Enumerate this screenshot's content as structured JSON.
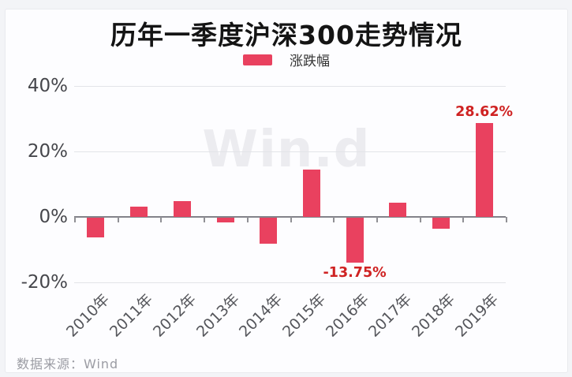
{
  "watermark": "Win.d",
  "source": "数据来源：Wind",
  "colors": {
    "bar": "#e9415f",
    "data_label": "#cf2222",
    "grid": "#e3e4e8",
    "axis": "#83838a",
    "card_bg": "#fdfdff",
    "page_bg": "#f3f4f7"
  },
  "chart_data": {
    "type": "bar",
    "title": "历年一季度沪深300走势情况",
    "series_name": "涨跌幅",
    "legend_position": "top",
    "categories": [
      "2010年",
      "2011年",
      "2012年",
      "2013年",
      "2014年",
      "2015年",
      "2016年",
      "2017年",
      "2018年",
      "2019年"
    ],
    "values": [
      -6.0,
      3.1,
      4.8,
      -1.4,
      -8.0,
      14.5,
      -13.75,
      4.4,
      -3.3,
      28.62
    ],
    "data_labels": {
      "2016年": "-13.75%",
      "2019年": "28.62%"
    },
    "ylim": [
      -20,
      40
    ],
    "yticks": [
      {
        "value": 40,
        "label": "40%"
      },
      {
        "value": 20,
        "label": "20%"
      },
      {
        "value": 0,
        "label": "0%"
      },
      {
        "value": -20,
        "label": "-20%"
      }
    ],
    "grid": true
  }
}
